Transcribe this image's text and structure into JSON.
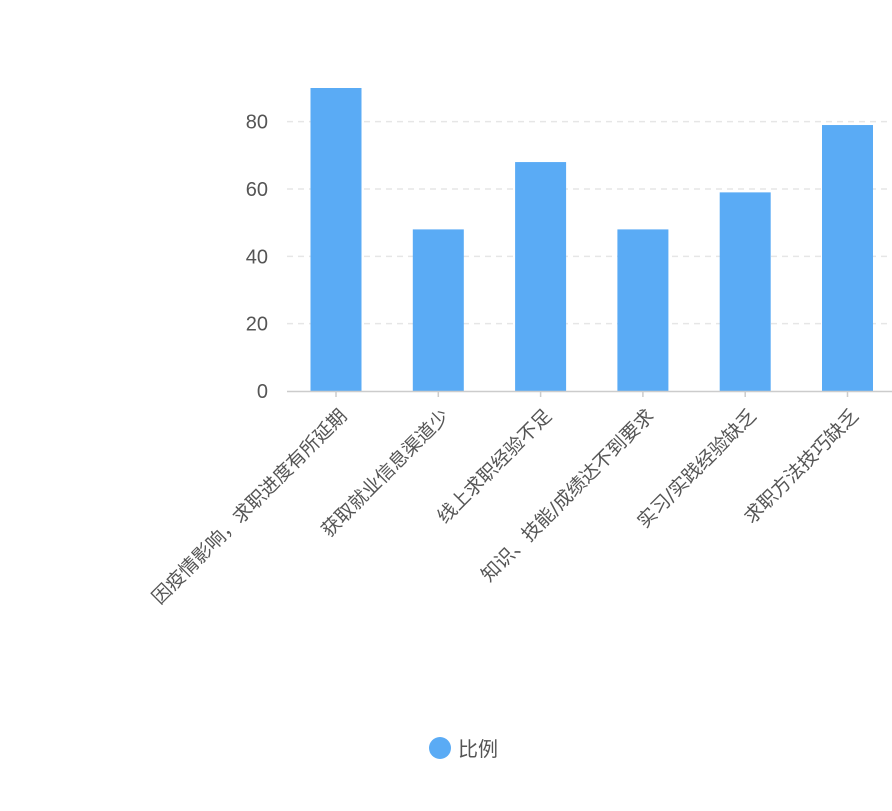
{
  "chart_data": {
    "type": "bar",
    "categories": [
      "因疫情影响，求职进度有所延期",
      "获取就业信息渠道少",
      "线上求职经验不足",
      "知识、技能/成绩达不到要求",
      "实习/实践经验缺乏",
      "求职方法技巧缺乏"
    ],
    "series": [
      {
        "name": "比例",
        "values": [
          90,
          48,
          68,
          48,
          59,
          79
        ]
      }
    ],
    "ylim": [
      0,
      90
    ],
    "yticks": [
      0,
      20,
      40,
      60,
      80
    ],
    "grid": true,
    "legend_position": "bottom-center",
    "colors": {
      "bar": "#5aabf5",
      "grid": "#e6e6e6",
      "axis": "#cccccc",
      "text": "#555555"
    }
  }
}
